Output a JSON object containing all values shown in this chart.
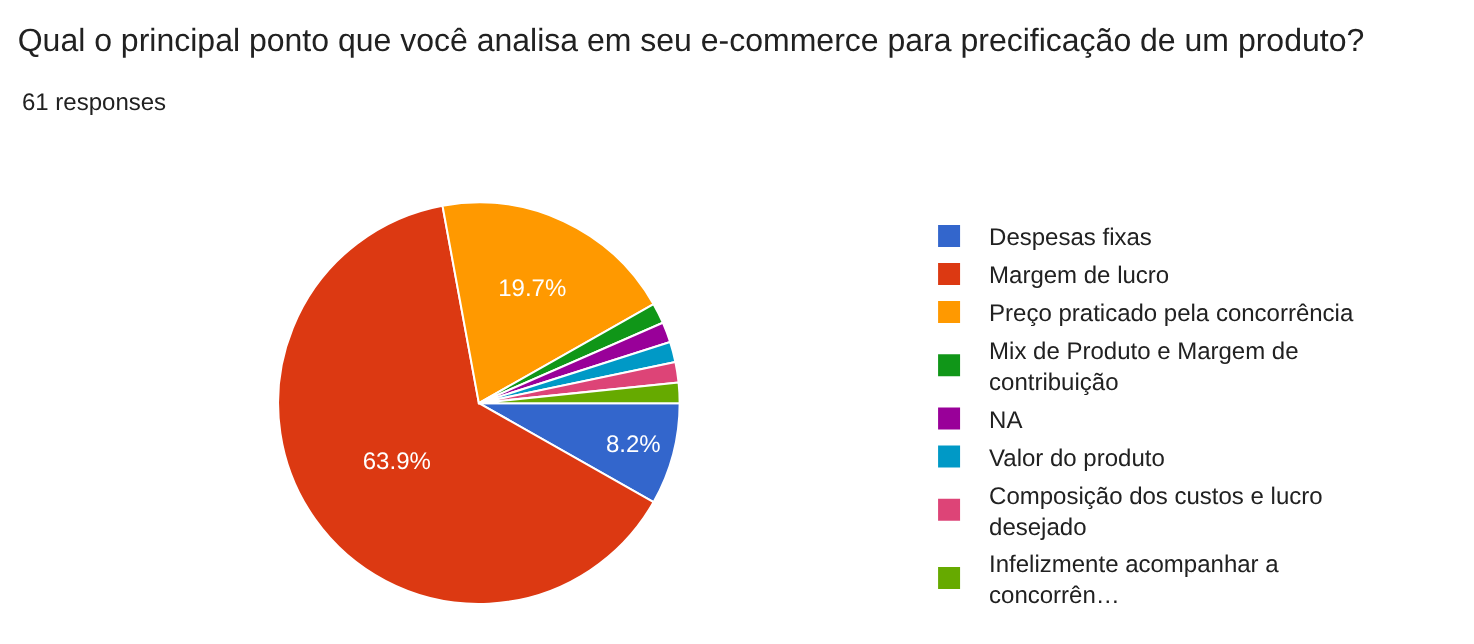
{
  "chart_data": {
    "type": "pie",
    "title": "Qual o principal ponto que você analisa em seu e-commerce para precificação de um produto?",
    "subtitle": "61 responses",
    "categories": [
      "Despesas fixas",
      "Margem de lucro",
      "Preço praticado pela concorrência",
      "Mix de Produto e Margem de contribuição",
      "NA",
      "Valor do produto",
      "Composição dos custos e lucro desejado",
      "Infelizmente acompanhar a concorrên…"
    ],
    "values": [
      8.2,
      63.9,
      19.7,
      1.64,
      1.64,
      1.64,
      1.64,
      1.64
    ],
    "value_labels": [
      "8.2%",
      "63.9%",
      "19.7%",
      null,
      null,
      null,
      null,
      null
    ],
    "colors": [
      "#3366cc",
      "#dc3912",
      "#ff9900",
      "#109618",
      "#990099",
      "#0099c6",
      "#dd4477",
      "#66aa00"
    ],
    "legend": "right"
  }
}
